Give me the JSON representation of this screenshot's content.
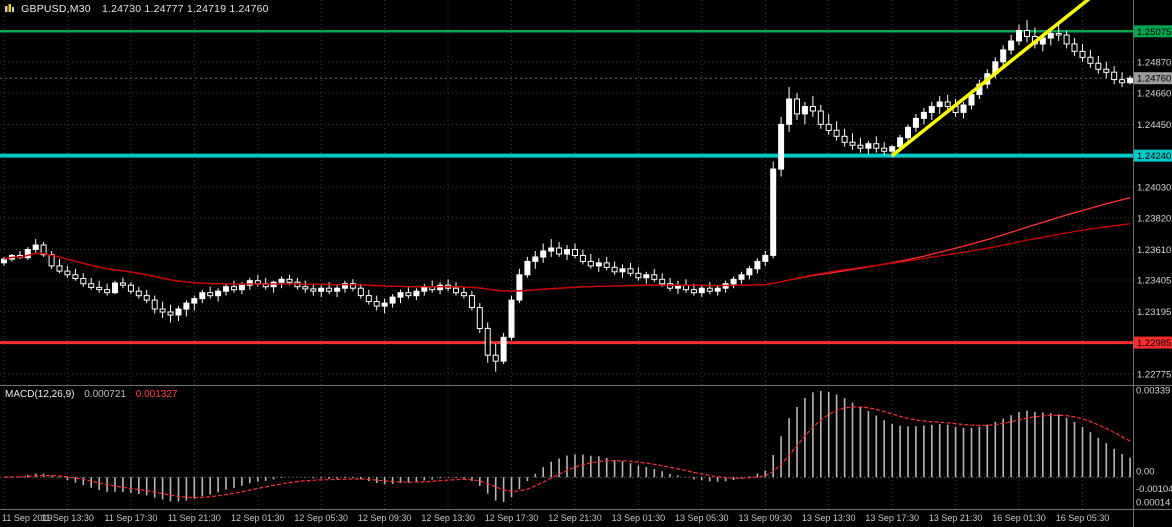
{
  "header": {
    "symbol_title": "GBPUSD,M30",
    "ohlc": "1.24730 1.24777 1.24719 1.24760"
  },
  "colors": {
    "background": "#000000",
    "grid": "#3a3a3a",
    "candle_up": "#ffffff",
    "candle_down": "#000000",
    "candle_border": "#ffffff",
    "ma_fast": "#ff3232",
    "ma_slow": "#c80000",
    "resistance_line": "#00a550",
    "support_line": "#00c8c8",
    "lower_line": "#ff2e2e",
    "trendline": "#ffff00",
    "macd_histogram": "#b8b8b8",
    "macd_signal": "#ff3030",
    "axis_text": "#d6d6d6",
    "time_text": "#c8c8c8",
    "badge_current_bg": "#9c9c9c",
    "separator": "#6e6e6e"
  },
  "chart_data": {
    "type": "candlestick",
    "symbol": "GBPUSD",
    "timeframe": "M30",
    "title": "GBPUSD,M30 1.24730 1.24777 1.24719 1.24760",
    "price_axis": {
      "top_price": 1.25285,
      "bottom_price": 1.227,
      "grid_labels": [
        "1.25075",
        "1.24870",
        "1.24660",
        "1.24450",
        "1.24240",
        "1.24030",
        "1.23820",
        "1.23610",
        "1.23405",
        "1.23195",
        "1.22985",
        "1.22775"
      ],
      "current_price": "1.24760"
    },
    "hlines": [
      {
        "price": 1.25075,
        "label": "1.25075",
        "color_key": "resistance_line",
        "width": 2.5
      },
      {
        "price": 1.2424,
        "label": "1.24240",
        "color_key": "support_line",
        "width": 4
      },
      {
        "price": 1.22985,
        "label": "1.22985",
        "color_key": "lower_line",
        "width": 3
      }
    ],
    "trendline": {
      "from_index": 112,
      "from_price": 1.2424,
      "to_index": 137,
      "to_price": 1.253
    },
    "time_labels": [
      "11 Sep 2019",
      "11 Sep 13:30",
      "11 Sep 17:30",
      "11 Sep 21:30",
      "12 Sep 01:30",
      "12 Sep 05:30",
      "12 Sep 09:30",
      "12 Sep 13:30",
      "12 Sep 17:30",
      "12 Sep 21:30",
      "13 Sep 01:30",
      "13 Sep 05:30",
      "13 Sep 09:30",
      "13 Sep 13:30",
      "13 Sep 17:30",
      "13 Sep 21:30",
      "16 Sep 01:30",
      "16 Sep 05:30"
    ],
    "candles_per_label": 8,
    "moving_averages": [
      {
        "name": "ma-100",
        "period": 100,
        "color_key": "ma_fast"
      },
      {
        "name": "ma-250",
        "period": 250,
        "color_key": "ma_slow"
      }
    ],
    "macd": {
      "label": "MACD(12,26,9)",
      "fast": 12,
      "slow": 26,
      "signal": 9,
      "main_value": "0.000721",
      "signal_value": "0.001327",
      "axis_labels": [
        {
          "text": "0.00339",
          "fy": 0.06
        },
        {
          "text": "0.00",
          "fy": 0.72
        },
        {
          "text": "-0.00104",
          "fy": 0.86
        },
        {
          "text": "0.00014",
          "fy": 0.97
        }
      ]
    },
    "candles": [
      [
        1.2352,
        1.2356,
        1.235,
        1.23545
      ],
      [
        1.23545,
        1.2358,
        1.2353,
        1.2357
      ],
      [
        1.2357,
        1.236,
        1.23545,
        1.23555
      ],
      [
        1.23555,
        1.23625,
        1.2354,
        1.2361
      ],
      [
        1.2361,
        1.2368,
        1.2359,
        1.2364
      ],
      [
        1.2364,
        1.2366,
        1.2356,
        1.23575
      ],
      [
        1.23575,
        1.236,
        1.2348,
        1.235
      ],
      [
        1.235,
        1.23545,
        1.2345,
        1.23465
      ],
      [
        1.23465,
        1.235,
        1.2342,
        1.2344
      ],
      [
        1.2344,
        1.2348,
        1.234,
        1.23415
      ],
      [
        1.23415,
        1.2345,
        1.2336,
        1.2338
      ],
      [
        1.2338,
        1.2342,
        1.2334,
        1.23355
      ],
      [
        1.23355,
        1.234,
        1.2332,
        1.2334
      ],
      [
        1.2334,
        1.2338,
        1.233,
        1.2332
      ],
      [
        1.2332,
        1.234,
        1.2331,
        1.23385
      ],
      [
        1.23385,
        1.2342,
        1.2335,
        1.2337
      ],
      [
        1.2337,
        1.2339,
        1.2331,
        1.2333
      ],
      [
        1.2333,
        1.2336,
        1.2328,
        1.233
      ],
      [
        1.233,
        1.2334,
        1.2325,
        1.2327
      ],
      [
        1.2327,
        1.233,
        1.2318,
        1.2321
      ],
      [
        1.2321,
        1.2326,
        1.2315,
        1.2319
      ],
      [
        1.2319,
        1.2324,
        1.2312,
        1.2317
      ],
      [
        1.2317,
        1.2323,
        1.2313,
        1.2321
      ],
      [
        1.2321,
        1.2327,
        1.2316,
        1.2325
      ],
      [
        1.2325,
        1.233,
        1.232,
        1.2328
      ],
      [
        1.2328,
        1.2334,
        1.2325,
        1.2332
      ],
      [
        1.2332,
        1.2336,
        1.2328,
        1.233
      ],
      [
        1.233,
        1.2335,
        1.2326,
        1.2333
      ],
      [
        1.2333,
        1.2338,
        1.233,
        1.2336
      ],
      [
        1.2336,
        1.234,
        1.2332,
        1.2334
      ],
      [
        1.2334,
        1.2339,
        1.2331,
        1.2337
      ],
      [
        1.2337,
        1.2342,
        1.2334,
        1.234
      ],
      [
        1.234,
        1.2344,
        1.2336,
        1.2338
      ],
      [
        1.2338,
        1.2342,
        1.2334,
        1.2336
      ],
      [
        1.2336,
        1.234,
        1.2332,
        1.2339
      ],
      [
        1.2339,
        1.2343,
        1.2335,
        1.2341
      ],
      [
        1.2341,
        1.2344,
        1.2337,
        1.2339
      ],
      [
        1.2339,
        1.2342,
        1.2334,
        1.2336
      ],
      [
        1.2336,
        1.234,
        1.2332,
        1.23345
      ],
      [
        1.23345,
        1.2338,
        1.233,
        1.2333
      ],
      [
        1.2333,
        1.2337,
        1.2329,
        1.2335
      ],
      [
        1.2335,
        1.2339,
        1.2331,
        1.2333
      ],
      [
        1.2333,
        1.2337,
        1.2329,
        1.2335
      ],
      [
        1.2335,
        1.234,
        1.2332,
        1.2338
      ],
      [
        1.2338,
        1.2341,
        1.2333,
        1.2335
      ],
      [
        1.2335,
        1.2338,
        1.2328,
        1.233
      ],
      [
        1.233,
        1.2334,
        1.2324,
        1.2326
      ],
      [
        1.2326,
        1.233,
        1.232,
        1.2323
      ],
      [
        1.2323,
        1.2328,
        1.2318,
        1.2325
      ],
      [
        1.2325,
        1.2331,
        1.2322,
        1.2329
      ],
      [
        1.2329,
        1.2334,
        1.2325,
        1.2332
      ],
      [
        1.2332,
        1.2336,
        1.2328,
        1.233
      ],
      [
        1.233,
        1.2335,
        1.2327,
        1.2333
      ],
      [
        1.2333,
        1.2338,
        1.233,
        1.2336
      ],
      [
        1.2336,
        1.234,
        1.2332,
        1.2334
      ],
      [
        1.2334,
        1.2339,
        1.2331,
        1.2337
      ],
      [
        1.2337,
        1.2341,
        1.2333,
        1.2335
      ],
      [
        1.2335,
        1.2339,
        1.233,
        1.2332
      ],
      [
        1.2332,
        1.2336,
        1.2328,
        1.233
      ],
      [
        1.233,
        1.2333,
        1.232,
        1.2322
      ],
      [
        1.2322,
        1.2325,
        1.2305,
        1.2308
      ],
      [
        1.2308,
        1.2312,
        1.2285,
        1.229
      ],
      [
        1.229,
        1.2298,
        1.2279,
        1.2286
      ],
      [
        1.2286,
        1.2305,
        1.2284,
        1.2302
      ],
      [
        1.2302,
        1.233,
        1.23,
        1.2327
      ],
      [
        1.2327,
        1.2348,
        1.2325,
        1.2344
      ],
      [
        1.2344,
        1.2356,
        1.2342,
        1.2353
      ],
      [
        1.2353,
        1.236,
        1.2348,
        1.2356
      ],
      [
        1.2356,
        1.2365,
        1.2352,
        1.236
      ],
      [
        1.236,
        1.2368,
        1.2356,
        1.2362
      ],
      [
        1.2362,
        1.2366,
        1.2356,
        1.2358
      ],
      [
        1.2358,
        1.2364,
        1.2354,
        1.2361
      ],
      [
        1.2361,
        1.2365,
        1.2355,
        1.2357
      ],
      [
        1.2357,
        1.2361,
        1.2351,
        1.2353
      ],
      [
        1.2353,
        1.2358,
        1.2348,
        1.235
      ],
      [
        1.235,
        1.2355,
        1.2346,
        1.2352
      ],
      [
        1.2352,
        1.2356,
        1.2347,
        1.2349
      ],
      [
        1.2349,
        1.2353,
        1.2344,
        1.2346
      ],
      [
        1.2346,
        1.2351,
        1.2342,
        1.2348
      ],
      [
        1.2348,
        1.2352,
        1.2343,
        1.2345
      ],
      [
        1.2345,
        1.2349,
        1.234,
        1.2342
      ],
      [
        1.2342,
        1.2346,
        1.2338,
        1.2344
      ],
      [
        1.2344,
        1.2348,
        1.2339,
        1.2341
      ],
      [
        1.2341,
        1.2345,
        1.2336,
        1.2338
      ],
      [
        1.2338,
        1.2342,
        1.2333,
        1.2335
      ],
      [
        1.2335,
        1.234,
        1.2331,
        1.2337
      ],
      [
        1.2337,
        1.2341,
        1.2332,
        1.2334
      ],
      [
        1.2334,
        1.2338,
        1.233,
        1.2332
      ],
      [
        1.2332,
        1.2337,
        1.2329,
        1.2335
      ],
      [
        1.2335,
        1.2339,
        1.2331,
        1.2333
      ],
      [
        1.2333,
        1.2337,
        1.233,
        1.2335
      ],
      [
        1.2335,
        1.234,
        1.2332,
        1.2338
      ],
      [
        1.2338,
        1.2343,
        1.2335,
        1.2341
      ],
      [
        1.2341,
        1.2346,
        1.2338,
        1.2344
      ],
      [
        1.2344,
        1.235,
        1.2341,
        1.2348
      ],
      [
        1.2348,
        1.2355,
        1.2345,
        1.2353
      ],
      [
        1.2353,
        1.236,
        1.235,
        1.2357
      ],
      [
        1.2357,
        1.242,
        1.2355,
        1.2415
      ],
      [
        1.2415,
        1.245,
        1.241,
        1.2445
      ],
      [
        1.2445,
        1.247,
        1.244,
        1.2462
      ],
      [
        1.2462,
        1.2466,
        1.2448,
        1.2452
      ],
      [
        1.2452,
        1.246,
        1.2445,
        1.2457
      ],
      [
        1.2457,
        1.2464,
        1.245,
        1.2454
      ],
      [
        1.2454,
        1.2458,
        1.2442,
        1.2445
      ],
      [
        1.2445,
        1.2452,
        1.2438,
        1.2441
      ],
      [
        1.2441,
        1.2447,
        1.2434,
        1.2437
      ],
      [
        1.2437,
        1.2442,
        1.243,
        1.2433
      ],
      [
        1.2433,
        1.2439,
        1.2428,
        1.2431
      ],
      [
        1.2431,
        1.2436,
        1.2426,
        1.2429
      ],
      [
        1.2429,
        1.2434,
        1.2425,
        1.2432
      ],
      [
        1.2432,
        1.2437,
        1.2426,
        1.2429
      ],
      [
        1.2429,
        1.2433,
        1.2424,
        1.2427
      ],
      [
        1.2427,
        1.2431,
        1.2423,
        1.243
      ],
      [
        1.243,
        1.2438,
        1.2428,
        1.2436
      ],
      [
        1.2436,
        1.2445,
        1.2434,
        1.2443
      ],
      [
        1.2443,
        1.2452,
        1.244,
        1.2449
      ],
      [
        1.2449,
        1.2456,
        1.2445,
        1.2453
      ],
      [
        1.2453,
        1.246,
        1.2448,
        1.2457
      ],
      [
        1.2457,
        1.2464,
        1.2452,
        1.246
      ],
      [
        1.246,
        1.2465,
        1.2454,
        1.2457
      ],
      [
        1.2457,
        1.2462,
        1.245,
        1.2453
      ],
      [
        1.2453,
        1.246,
        1.2449,
        1.2458
      ],
      [
        1.2458,
        1.2468,
        1.2455,
        1.2465
      ],
      [
        1.2465,
        1.2475,
        1.2462,
        1.2472
      ],
      [
        1.2472,
        1.2482,
        1.2469,
        1.2479
      ],
      [
        1.2479,
        1.249,
        1.2476,
        1.2487
      ],
      [
        1.2487,
        1.2498,
        1.2484,
        1.2495
      ],
      [
        1.2495,
        1.2505,
        1.2492,
        1.2501
      ],
      [
        1.2501,
        1.2512,
        1.2498,
        1.2508
      ],
      [
        1.2508,
        1.2515,
        1.25,
        1.2504
      ],
      [
        1.2504,
        1.251,
        1.2496,
        1.2499
      ],
      [
        1.2499,
        1.2506,
        1.2494,
        1.2503
      ],
      [
        1.2503,
        1.2509,
        1.2498,
        1.2506
      ],
      [
        1.2506,
        1.2513,
        1.2501,
        1.2505
      ],
      [
        1.2505,
        1.2508,
        1.2496,
        1.2499
      ],
      [
        1.2499,
        1.2503,
        1.2491,
        1.2494
      ],
      [
        1.2494,
        1.2499,
        1.2487,
        1.249
      ],
      [
        1.249,
        1.2495,
        1.2483,
        1.2486
      ],
      [
        1.2486,
        1.2491,
        1.2479,
        1.2482
      ],
      [
        1.2482,
        1.2487,
        1.2476,
        1.248
      ],
      [
        1.248,
        1.2484,
        1.2472,
        1.2475
      ],
      [
        1.2475,
        1.248,
        1.247,
        1.2473
      ],
      [
        1.2473,
        1.24777,
        1.24719,
        1.2476
      ]
    ]
  }
}
